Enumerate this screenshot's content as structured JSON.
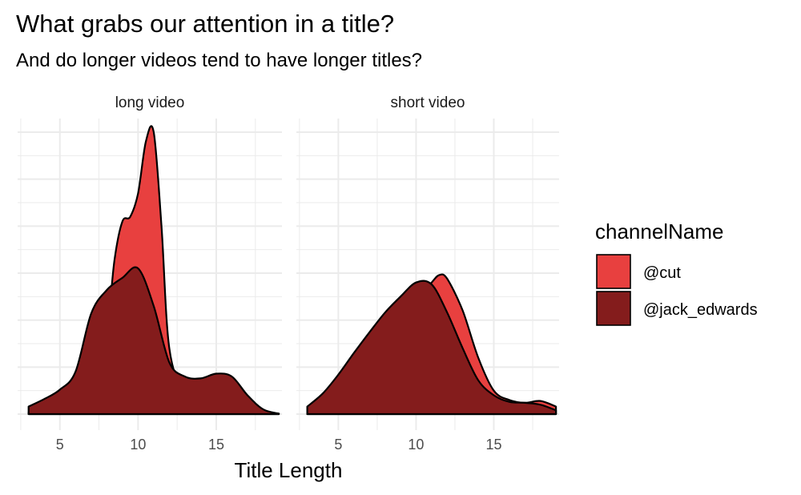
{
  "title": "What grabs our attention in a title?",
  "subtitle": "And do longer videos tend to have longer titles?",
  "chart_data": {
    "type": "area",
    "title": "What grabs our attention in a title?",
    "subtitle": "And do longer videos tend to have longer titles?",
    "xlabel": "Title Length",
    "ylabel": "",
    "xlim": [
      2.3,
      19.2
    ],
    "ylim": [
      0,
      0.3
    ],
    "x_ticks": [
      5,
      10,
      15
    ],
    "y_ticks_visible": false,
    "grid": true,
    "legend": {
      "title": "channelName",
      "position": "right",
      "entries": [
        "@cut",
        "@jack_edwards"
      ]
    },
    "colors": {
      "@cut": "#e8403f",
      "@jack_edwards": "#841c1c",
      "outline": "#000000"
    },
    "facets": [
      {
        "label": "long video",
        "series": [
          {
            "name": "@cut",
            "x": [
              3,
              4,
              5,
              6,
              7,
              8,
              8.5,
              9,
              9.5,
              10,
              10.5,
              11,
              11.5,
              12,
              13,
              14,
              15,
              16,
              17,
              18,
              19
            ],
            "y": [
              0.002,
              0.0015,
              0.001,
              0.004,
              0.02,
              0.09,
              0.165,
              0.205,
              0.21,
              0.235,
              0.29,
              0.3,
              0.2,
              0.07,
              0.02,
              0.006,
              0.002,
              0.001,
              0.001,
              0.0005,
              0.0005
            ]
          },
          {
            "name": "@jack_edwards",
            "x": [
              3,
              4,
              5,
              6,
              7,
              8,
              9,
              10,
              11,
              12,
              13,
              14,
              15,
              16,
              17,
              18,
              19
            ],
            "y": [
              0.008,
              0.016,
              0.026,
              0.045,
              0.107,
              0.132,
              0.145,
              0.155,
              0.115,
              0.055,
              0.04,
              0.038,
              0.043,
              0.04,
              0.02,
              0.005,
              0.0005
            ]
          }
        ]
      },
      {
        "label": "short video",
        "series": [
          {
            "name": "@cut",
            "x": [
              3,
              4,
              5,
              6,
              7,
              8,
              9,
              10,
              11,
              11.5,
              12,
              13,
              14,
              15,
              16,
              17,
              18,
              19
            ],
            "y": [
              0.002,
              0.004,
              0.008,
              0.016,
              0.034,
              0.062,
              0.092,
              0.12,
              0.14,
              0.148,
              0.144,
              0.11,
              0.06,
              0.025,
              0.015,
              0.012,
              0.014,
              0.008
            ]
          },
          {
            "name": "@jack_edwards",
            "x": [
              3,
              4,
              5,
              6,
              7,
              8,
              9,
              10,
              11,
              12,
              13,
              14,
              15,
              16,
              17,
              18,
              19
            ],
            "y": [
              0.008,
              0.022,
              0.042,
              0.065,
              0.087,
              0.108,
              0.125,
              0.14,
              0.138,
              0.108,
              0.07,
              0.036,
              0.02,
              0.013,
              0.012,
              0.01,
              0.004
            ]
          }
        ]
      }
    ]
  }
}
